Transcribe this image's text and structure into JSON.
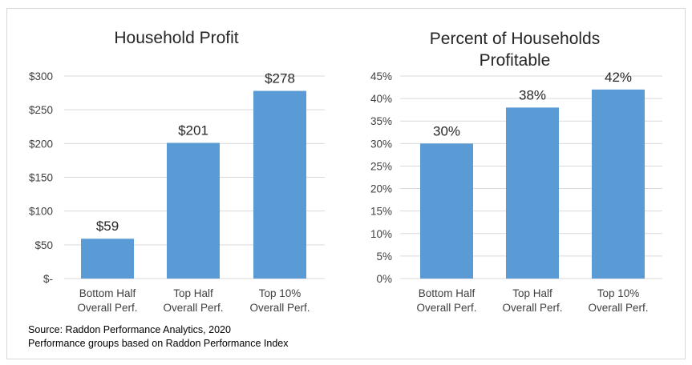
{
  "chart_data": [
    {
      "type": "bar",
      "title": "Household Profit",
      "categories": [
        [
          "Bottom Half",
          "Overall Perf."
        ],
        [
          "Top Half",
          "Overall Perf."
        ],
        [
          "Top 10%",
          "Overall Perf."
        ]
      ],
      "values": [
        59,
        201,
        278
      ],
      "data_labels": [
        "$59",
        "$201",
        "$278"
      ],
      "yticks": [
        "$-",
        "$50",
        "$100",
        "$150",
        "$200",
        "$250",
        "$300"
      ],
      "ylim": [
        0,
        300
      ],
      "ystep": 50,
      "grid": true,
      "color": "#5b9bd5"
    },
    {
      "type": "bar",
      "title": [
        "Percent of Households",
        "Profitable"
      ],
      "categories": [
        [
          "Bottom Half",
          "Overall Perf."
        ],
        [
          "Top Half",
          "Overall Perf."
        ],
        [
          "Top 10%",
          "Overall Perf."
        ]
      ],
      "values": [
        30,
        38,
        42
      ],
      "data_labels": [
        "30%",
        "38%",
        "42%"
      ],
      "yticks": [
        "0%",
        "5%",
        "10%",
        "15%",
        "20%",
        "25%",
        "30%",
        "35%",
        "40%",
        "45%"
      ],
      "ylim": [
        0,
        45
      ],
      "ystep": 5,
      "grid": true,
      "color": "#5b9bd5"
    }
  ],
  "source": {
    "line1": "Source: Raddon Performance Analytics, 2020",
    "line2": "Performance groups based on Raddon Performance Index"
  }
}
